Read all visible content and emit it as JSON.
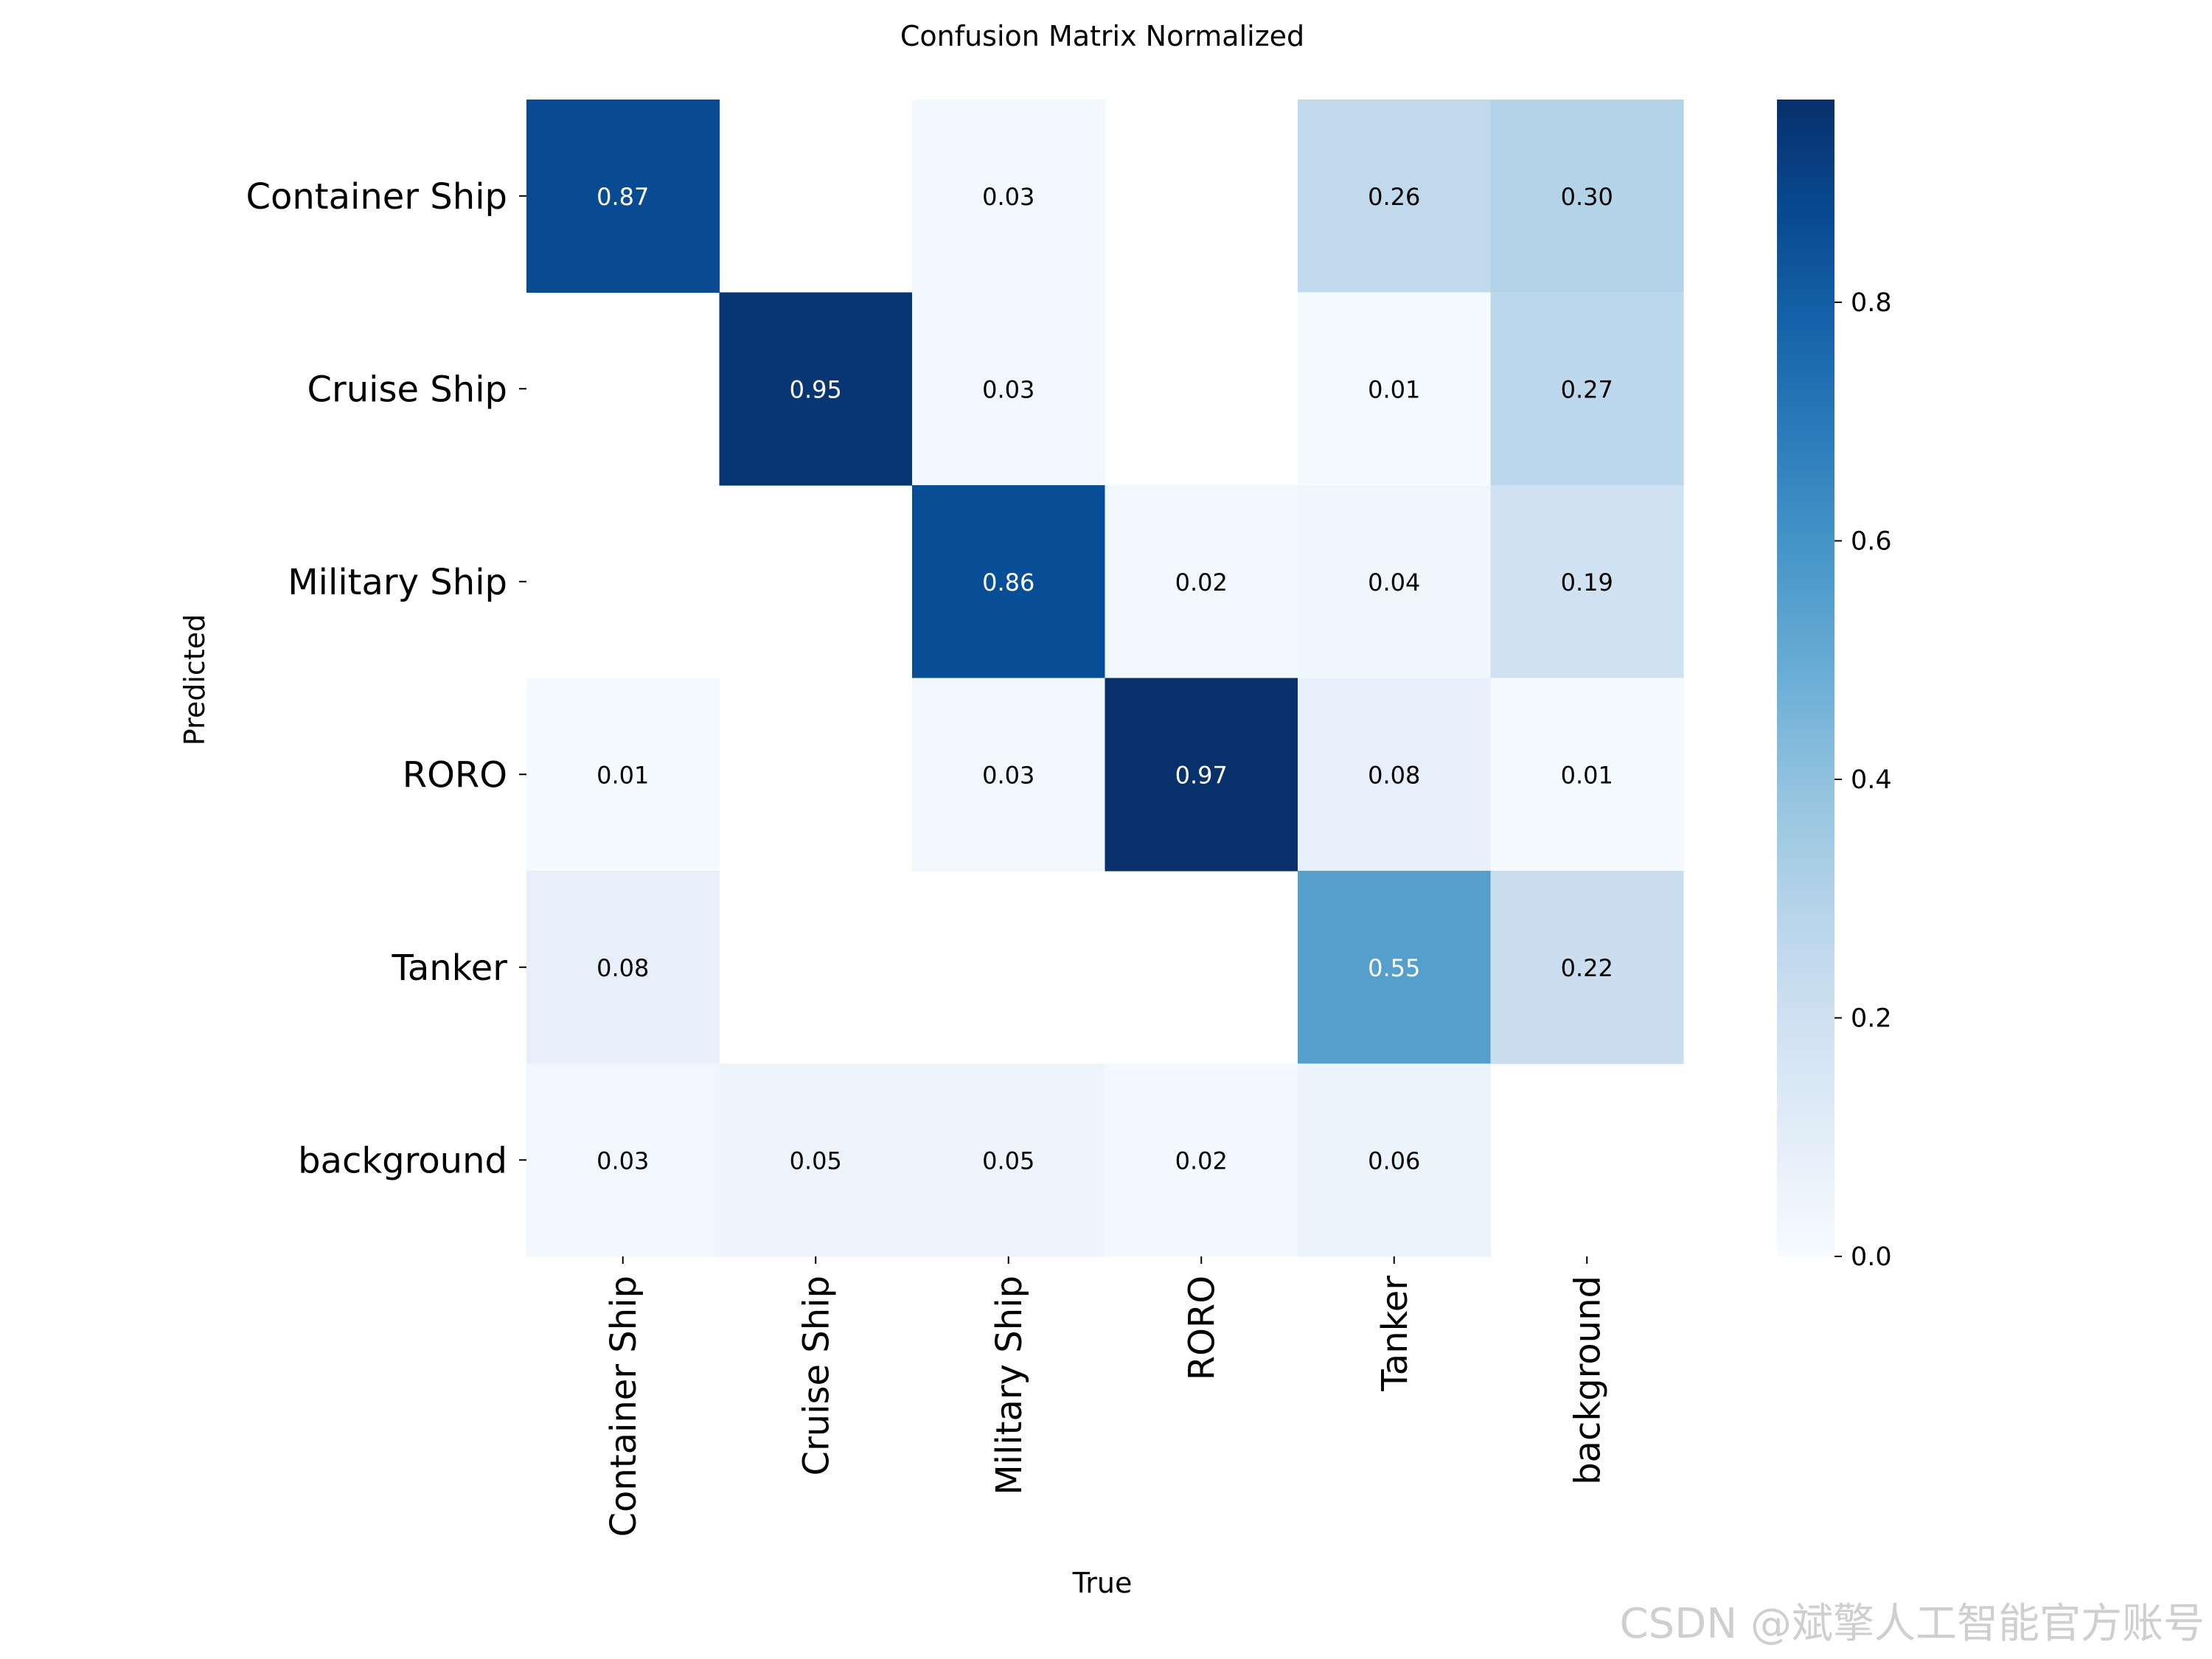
{
  "chart_data": {
    "type": "heatmap",
    "title": "Confusion Matrix Normalized",
    "xlabel": "True",
    "ylabel": "Predicted",
    "x_categories": [
      "Container Ship",
      "Cruise Ship",
      "Military Ship",
      "RORO",
      "Tanker",
      "background"
    ],
    "y_categories": [
      "Container Ship",
      "Cruise Ship",
      "Military Ship",
      "RORO",
      "Tanker",
      "background"
    ],
    "values": [
      [
        0.87,
        null,
        0.03,
        null,
        0.26,
        0.3
      ],
      [
        null,
        0.95,
        0.03,
        null,
        0.01,
        0.27
      ],
      [
        null,
        null,
        0.86,
        0.02,
        0.04,
        0.19
      ],
      [
        0.01,
        null,
        0.03,
        0.97,
        0.08,
        0.01
      ],
      [
        0.08,
        null,
        null,
        null,
        0.55,
        0.22
      ],
      [
        0.03,
        0.05,
        0.05,
        0.02,
        0.06,
        null
      ]
    ],
    "colorbar": {
      "range": [
        0,
        0.97
      ],
      "ticks": [
        0.0,
        0.2,
        0.4,
        0.6,
        0.8
      ],
      "tick_labels": [
        "0.0",
        "0.2",
        "0.4",
        "0.6",
        "0.8"
      ],
      "colormap": "Blues"
    }
  },
  "watermark": "CSDN @斌擎人工智能官方账号"
}
